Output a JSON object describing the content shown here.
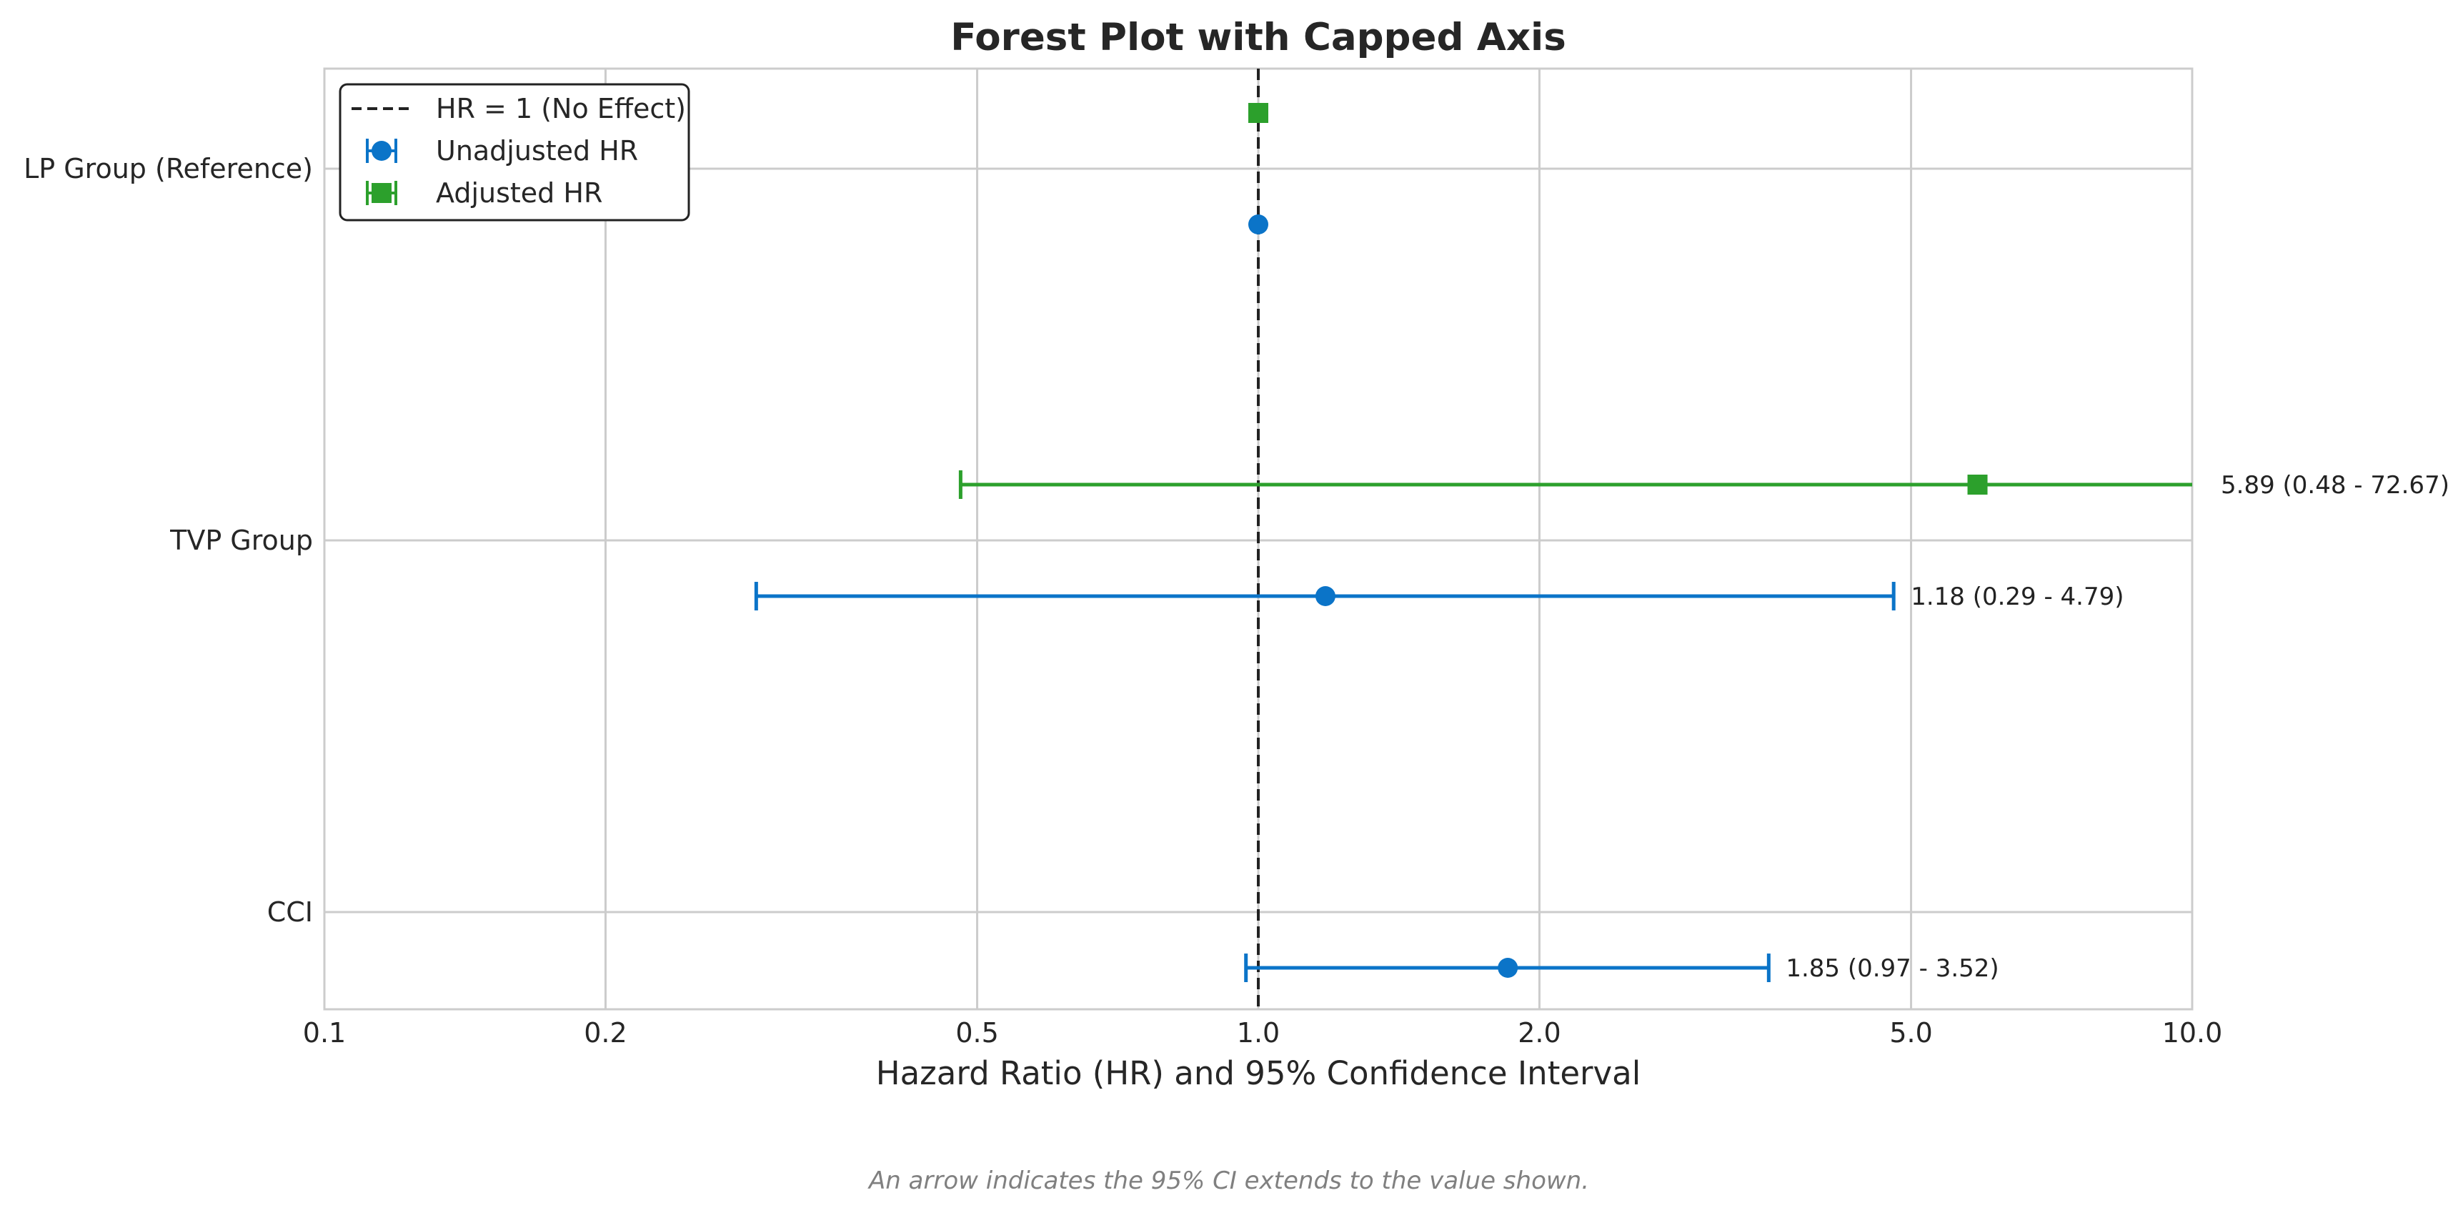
{
  "chart_data": {
    "type": "forest",
    "title": "Forest Plot with Capped Axis",
    "xlabel": "Hazard Ratio (HR) and 95% Confidence Interval",
    "ylabel": "",
    "x_scale": "log",
    "xlim": [
      0.1,
      10.0
    ],
    "x_ticks": [
      0.1,
      0.2,
      0.5,
      1.0,
      2.0,
      5.0,
      10.0
    ],
    "x_tick_labels": [
      "0.1",
      "0.2",
      "0.5",
      "1.0",
      "2.0",
      "5.0",
      "10.0"
    ],
    "grid": true,
    "reference_line": {
      "x": 1.0,
      "style": "dashed",
      "color": "#222222"
    },
    "categories": [
      "LP Group (Reference)",
      "TVP Group",
      "CCI"
    ],
    "legend": {
      "position": "top-left",
      "entries": [
        {
          "label": "HR = 1 (No Effect)",
          "marker": "dashed-line",
          "color": "#222222"
        },
        {
          "label": "Unadjusted HR",
          "marker": "circle",
          "color": "#0b74c8"
        },
        {
          "label": "Adjusted HR",
          "marker": "square",
          "color": "#2ca02c"
        }
      ]
    },
    "series": [
      {
        "name": "Unadjusted HR",
        "color": "#0b74c8",
        "marker": "circle",
        "points": [
          {
            "category": "LP Group (Reference)",
            "hr": 1.0,
            "ci": null,
            "label": ""
          },
          {
            "category": "TVP Group",
            "hr": 1.18,
            "ci": [
              0.29,
              4.79
            ],
            "label": "1.18 (0.29 - 4.79)"
          },
          {
            "category": "CCI",
            "hr": 1.85,
            "ci": [
              0.97,
              3.52
            ],
            "label": "1.85 (0.97 - 3.52)"
          }
        ]
      },
      {
        "name": "Adjusted HR",
        "color": "#2ca02c",
        "marker": "square",
        "points": [
          {
            "category": "LP Group (Reference)",
            "hr": 1.0,
            "ci": null,
            "label": ""
          },
          {
            "category": "TVP Group",
            "hr": 5.89,
            "ci": [
              0.48,
              72.67
            ],
            "label": "5.89 (0.48 - 72.67)"
          }
        ]
      }
    ],
    "footnote": "An arrow indicates the 95% CI extends to the value shown."
  }
}
